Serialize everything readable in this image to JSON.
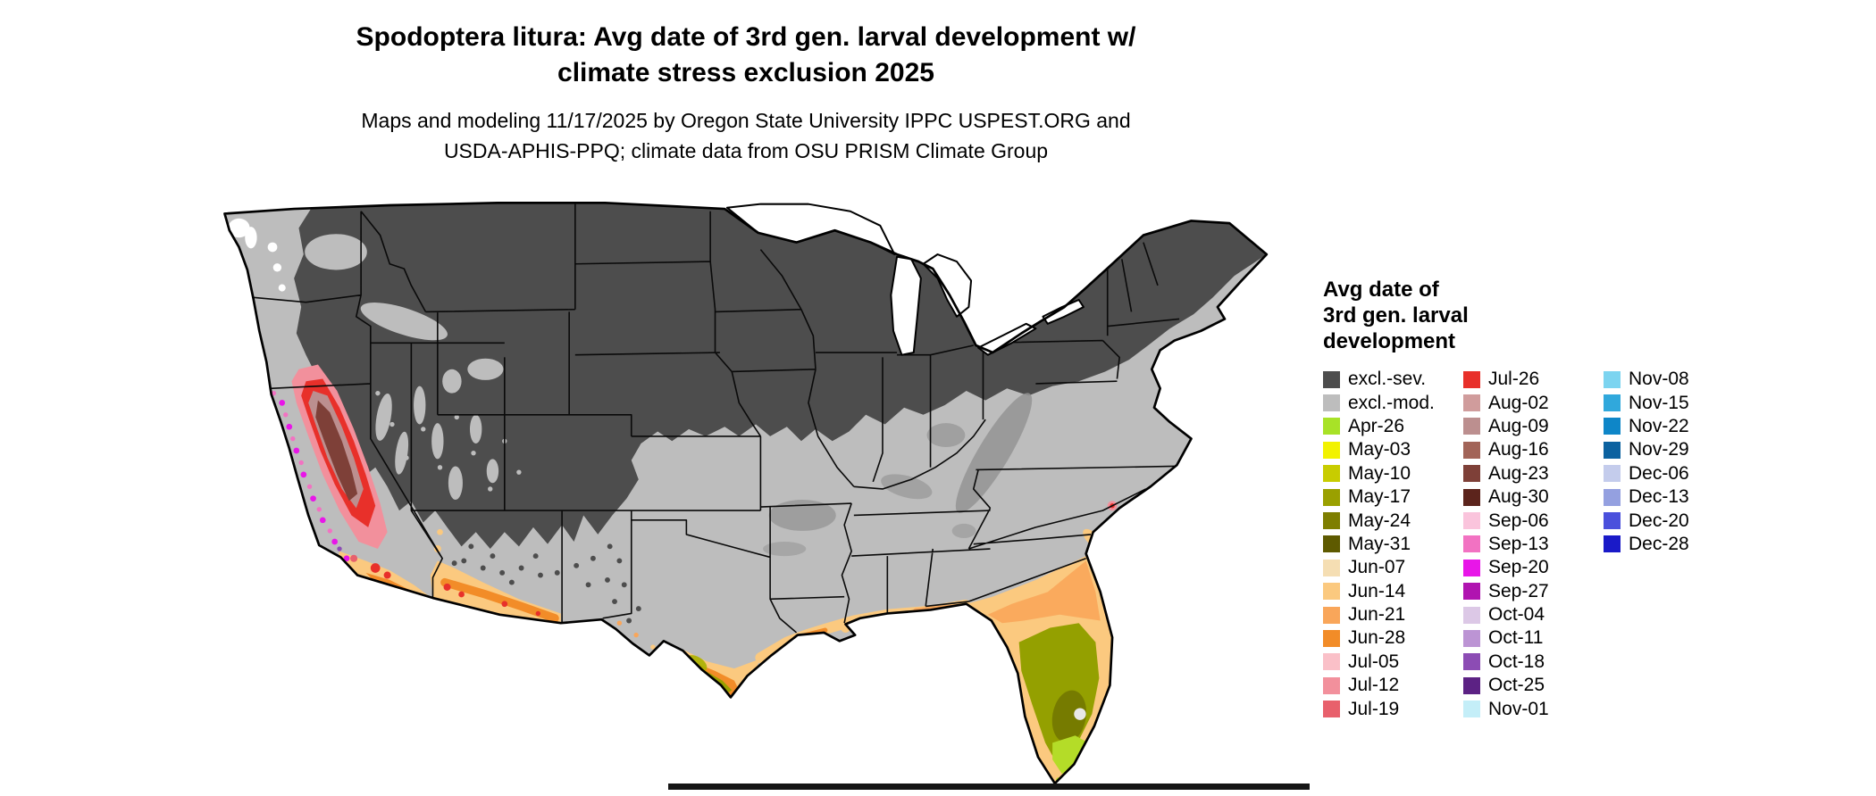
{
  "title": {
    "line1": "Spodoptera litura: Avg date of 3rd gen. larval development w/",
    "line2": "climate stress exclusion 2025"
  },
  "subtitle": {
    "line1": "Maps and modeling 11/17/2025 by Oregon State University IPPC USPEST.ORG and",
    "line2": "USDA-APHIS-PPQ; climate data from OSU PRISM Climate Group"
  },
  "map": {
    "colors": {
      "background": "#FFFFFF",
      "state_border": "#000000",
      "outline": "#000000",
      "excluded_severe": "#4D4D4D",
      "excluded_moderate": "#BDBDBD",
      "water": "#FFFFFF",
      "frame": "#151515"
    }
  },
  "legend": {
    "title_lines": [
      "Avg date of",
      "3rd gen. larval",
      "development"
    ],
    "columns": [
      {
        "items": [
          {
            "label": "excl.-sev.",
            "color": "#4D4D4D"
          },
          {
            "label": "excl.-mod.",
            "color": "#BDBDBD"
          },
          {
            "label": "Apr-26",
            "color": "#A8E227"
          },
          {
            "label": "May-03",
            "color": "#F2F200"
          },
          {
            "label": "May-10",
            "color": "#C8CC00"
          },
          {
            "label": "May-17",
            "color": "#9AA000"
          },
          {
            "label": "May-24",
            "color": "#7E7E00"
          },
          {
            "label": "May-31",
            "color": "#5E5A00"
          },
          {
            "label": "Jun-07",
            "color": "#F5DEB3"
          },
          {
            "label": "Jun-14",
            "color": "#FBC97F"
          },
          {
            "label": "Jun-21",
            "color": "#F9A65A"
          },
          {
            "label": "Jun-28",
            "color": "#F28C28"
          },
          {
            "label": "Jul-05",
            "color": "#FAC0C8"
          },
          {
            "label": "Jul-12",
            "color": "#F2909C"
          },
          {
            "label": "Jul-19",
            "color": "#E8606C"
          }
        ]
      },
      {
        "items": [
          {
            "label": "Jul-26",
            "color": "#E8302A"
          },
          {
            "label": "Aug-02",
            "color": "#D09C9C"
          },
          {
            "label": "Aug-09",
            "color": "#BC8F8F"
          },
          {
            "label": "Aug-16",
            "color": "#A26458"
          },
          {
            "label": "Aug-23",
            "color": "#7E4038"
          },
          {
            "label": "Aug-30",
            "color": "#5C241C"
          },
          {
            "label": "Sep-06",
            "color": "#FAC4DC"
          },
          {
            "label": "Sep-13",
            "color": "#F272C2"
          },
          {
            "label": "Sep-20",
            "color": "#E816E8"
          },
          {
            "label": "Sep-27",
            "color": "#B014B0"
          },
          {
            "label": "Oct-04",
            "color": "#DCC8E6"
          },
          {
            "label": "Oct-11",
            "color": "#BC94D4"
          },
          {
            "label": "Oct-18",
            "color": "#8C4CB4"
          },
          {
            "label": "Oct-25",
            "color": "#5C2284"
          },
          {
            "label": "Nov-01",
            "color": "#C4EEF8"
          }
        ]
      },
      {
        "items": [
          {
            "label": "Nov-08",
            "color": "#7CD4F0"
          },
          {
            "label": "Nov-15",
            "color": "#30A8DC"
          },
          {
            "label": "Nov-22",
            "color": "#0E86C8"
          },
          {
            "label": "Nov-29",
            "color": "#0C62A0"
          },
          {
            "label": "Dec-06",
            "color": "#C4CCEC"
          },
          {
            "label": "Dec-13",
            "color": "#94A0E0"
          },
          {
            "label": "Dec-20",
            "color": "#4A50DC"
          },
          {
            "label": "Dec-28",
            "color": "#1A1AC8"
          }
        ]
      }
    ]
  }
}
